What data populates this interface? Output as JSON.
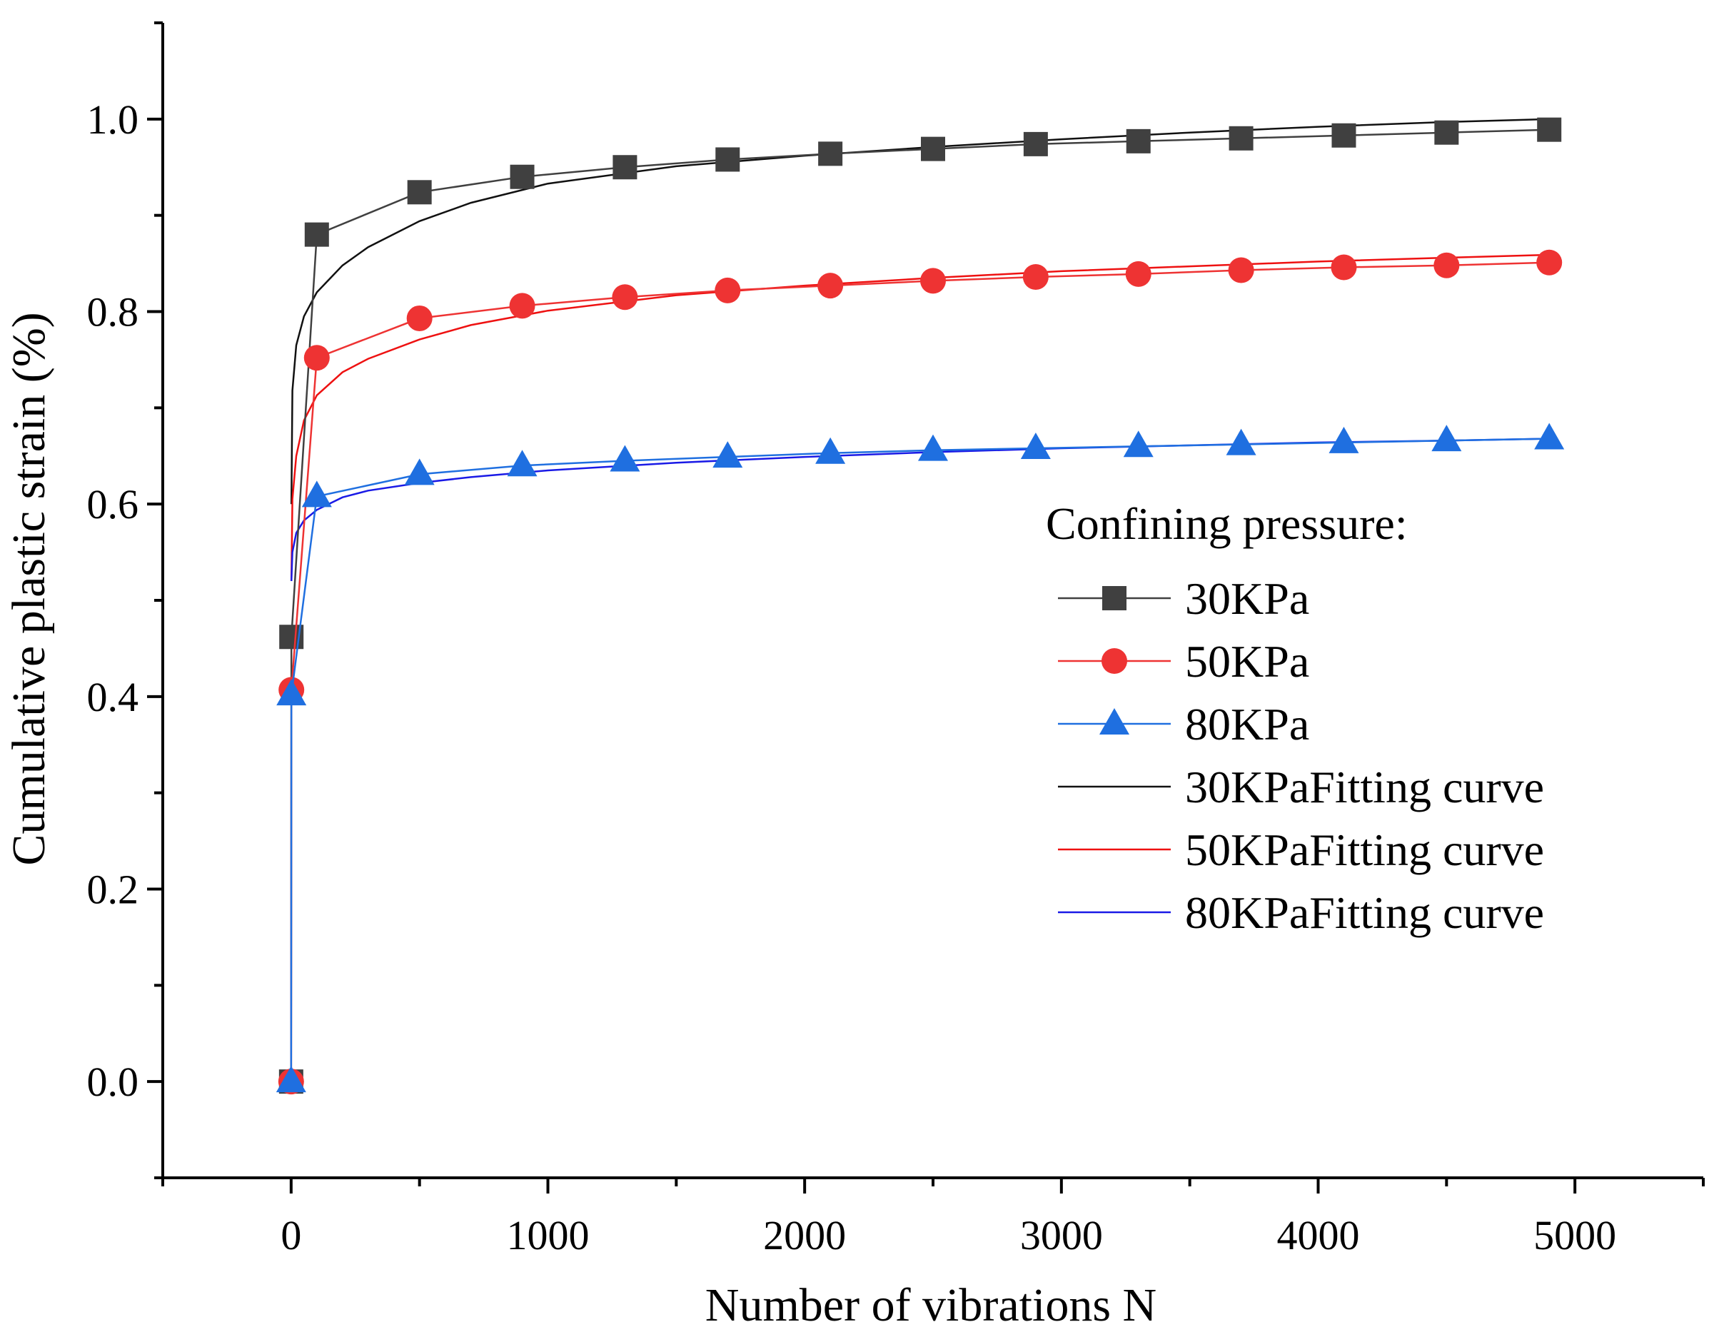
{
  "chart_data": {
    "type": "line",
    "title": "",
    "xlabel": "Number of vibrations N",
    "ylabel": "Cumulative plastic strain (%)",
    "xlim": [
      -500,
      5500
    ],
    "ylim": [
      -0.1,
      1.1
    ],
    "x_ticks": [
      0,
      1000,
      2000,
      3000,
      4000,
      5000
    ],
    "y_ticks": [
      0.0,
      0.2,
      0.4,
      0.6,
      0.8,
      1.0
    ],
    "x_tick_labels": [
      "0",
      "1000",
      "2000",
      "3000",
      "4000",
      "5000"
    ],
    "y_tick_labels": [
      "0.0",
      "0.2",
      "0.4",
      "0.6",
      "0.8",
      "1.0"
    ],
    "grid": false,
    "legend": {
      "title": "Confining pressure:",
      "position": "right"
    },
    "series": [
      {
        "name": "30KPa",
        "kind": "measured",
        "marker": "square",
        "color": "#404040",
        "x": [
          0,
          1,
          100,
          500,
          900,
          1300,
          1700,
          2100,
          2500,
          2900,
          3300,
          3700,
          4100,
          4500,
          4900
        ],
        "y": [
          0.0,
          0.462,
          0.88,
          0.924,
          0.94,
          0.95,
          0.958,
          0.964,
          0.969,
          0.974,
          0.977,
          0.98,
          0.983,
          0.986,
          0.989
        ]
      },
      {
        "name": "50KPa",
        "kind": "measured",
        "marker": "circle",
        "color": "#ee3333",
        "x": [
          0,
          1,
          100,
          500,
          900,
          1300,
          1700,
          2100,
          2500,
          2900,
          3300,
          3700,
          4100,
          4500,
          4900
        ],
        "y": [
          0.0,
          0.407,
          0.752,
          0.793,
          0.806,
          0.815,
          0.822,
          0.827,
          0.832,
          0.836,
          0.839,
          0.843,
          0.846,
          0.848,
          0.851
        ]
      },
      {
        "name": "80KPa",
        "kind": "measured",
        "marker": "triangle",
        "color": "#1f6fe0",
        "x": [
          0,
          1,
          100,
          500,
          900,
          1300,
          1700,
          2100,
          2500,
          2900,
          3300,
          3700,
          4100,
          4500,
          4900
        ],
        "y": [
          0.0,
          0.402,
          0.608,
          0.631,
          0.64,
          0.645,
          0.649,
          0.653,
          0.656,
          0.658,
          0.66,
          0.662,
          0.664,
          0.666,
          0.668
        ]
      },
      {
        "name": "30KPaFitting curve",
        "kind": "fit",
        "color": "#111111",
        "x": [
          1,
          5,
          20,
          50,
          100,
          200,
          300,
          500,
          700,
          1000,
          1500,
          2000,
          2500,
          3000,
          3500,
          4000,
          4500,
          4900
        ],
        "y": [
          0.6,
          0.718,
          0.765,
          0.795,
          0.82,
          0.848,
          0.867,
          0.894,
          0.913,
          0.933,
          0.951,
          0.962,
          0.971,
          0.979,
          0.986,
          0.992,
          0.997,
          1.0
        ]
      },
      {
        "name": "50KPaFitting curve",
        "kind": "fit",
        "color": "#ee1111",
        "x": [
          1,
          5,
          20,
          50,
          100,
          200,
          300,
          500,
          700,
          1000,
          1500,
          2000,
          2500,
          3000,
          3500,
          4000,
          4500,
          4900
        ],
        "y": [
          0.52,
          0.605,
          0.65,
          0.687,
          0.713,
          0.737,
          0.751,
          0.771,
          0.786,
          0.801,
          0.817,
          0.827,
          0.835,
          0.842,
          0.847,
          0.852,
          0.856,
          0.859
        ]
      },
      {
        "name": "80KPaFitting curve",
        "kind": "fit",
        "color": "#1a1ae6",
        "x": [
          1,
          5,
          20,
          50,
          100,
          200,
          300,
          500,
          700,
          1000,
          1500,
          2000,
          2500,
          3000,
          3500,
          4000,
          4500,
          4900
        ],
        "y": [
          0.52,
          0.55,
          0.57,
          0.583,
          0.594,
          0.607,
          0.614,
          0.622,
          0.628,
          0.635,
          0.643,
          0.649,
          0.654,
          0.658,
          0.661,
          0.664,
          0.666,
          0.668
        ]
      }
    ]
  }
}
